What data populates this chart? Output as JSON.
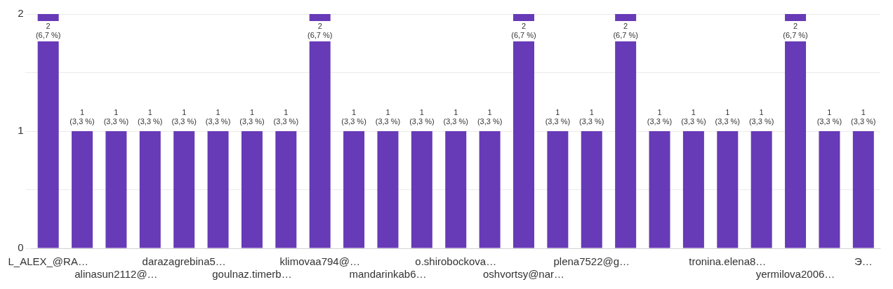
{
  "chart_data": {
    "type": "bar",
    "categories": [
      "L_ALEX_@RA…",
      null,
      "alinasun2112@…",
      null,
      "darazagrebina5…",
      null,
      "goulnaz.timerb…",
      null,
      "klimovaa794@…",
      null,
      "mandarinkab6…",
      null,
      "o.shirobockova…",
      null,
      "oshvortsy@nar…",
      null,
      "plena7522@g…",
      null,
      null,
      null,
      "tronina.elena8…",
      null,
      "yermilova2006…",
      null,
      "Э…"
    ],
    "values": [
      2,
      1,
      1,
      1,
      1,
      1,
      1,
      1,
      2,
      1,
      1,
      1,
      1,
      1,
      2,
      1,
      1,
      2,
      1,
      1,
      1,
      1,
      2,
      1,
      1
    ],
    "value_labels": [
      "2 (6,7 %)",
      "1 (3,3 %)",
      "1 (3,3 %)",
      "1 (3,3 %)",
      "1 (3,3 %)",
      "1 (3,3 %)",
      "1 (3,3 %)",
      "1 (3,3 %)",
      "2 (6,7 %)",
      "1 (3,3 %)",
      "1 (3,3 %)",
      "1 (3,3 %)",
      "1 (3,3 %)",
      "1 (3,3 %)",
      "2 (6,7 %)",
      "1 (3,3 %)",
      "1 (3,3 %)",
      "2 (6,7 %)",
      "1 (3,3 %)",
      "1 (3,3 %)",
      "1 (3,3 %)",
      "1 (3,3 %)",
      "2 (6,7 %)",
      "1 (3,3 %)",
      "1 (3,3 %)"
    ],
    "color": "#673ab7",
    "ylim": [
      0,
      2
    ],
    "yticks": [
      0,
      {
        "value": 0.5,
        "label": null
      },
      1,
      {
        "value": 1.5,
        "label": null
      },
      2
    ],
    "grid": "y"
  }
}
